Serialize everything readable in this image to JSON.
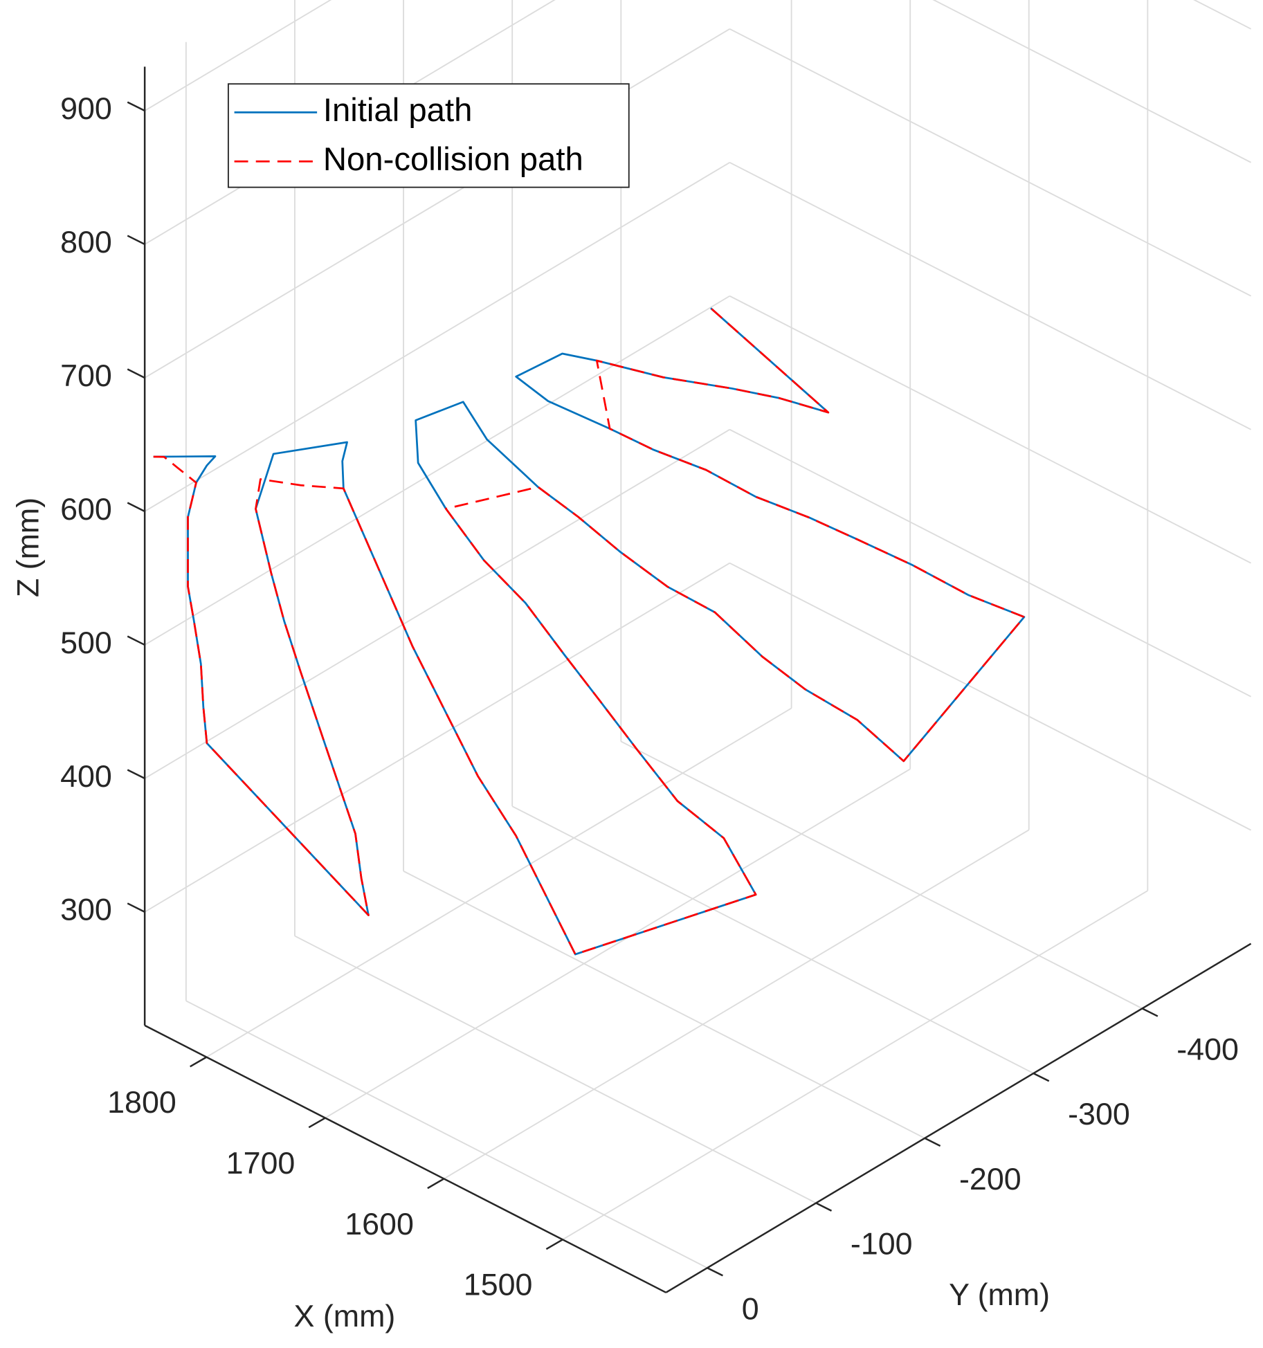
{
  "chart_data": {
    "type": "line3d",
    "xlabel": "X (mm)",
    "ylabel": "Y (mm)",
    "zlabel": "Z (mm)",
    "xlim": [
      1413,
      1852
    ],
    "ylim": [
      -500,
      38
    ],
    "zlim": [
      215,
      933
    ],
    "xticks": [
      1500,
      1600,
      1700,
      1800
    ],
    "yticks": [
      -400,
      -300,
      -200,
      -100,
      0
    ],
    "zticks": [
      300,
      400,
      500,
      600,
      700,
      800,
      900
    ],
    "grid": true,
    "legend": "upper left",
    "series": [
      {
        "name": "Initial path",
        "color": "#0072bd",
        "dash": false,
        "x": [
          1852,
          1800,
          1807,
          1816,
          1823,
          1823,
          1818,
          1812,
          1810,
          1807,
          1735,
          1741,
          1746,
          1770,
          1792,
          1806,
          1817,
          1830,
          1815,
          1753,
          1757,
          1756,
          1782,
          1727,
          1695,
          1645,
          1493,
          1520,
          1559,
          1593,
          1624,
          1654,
          1687,
          1722,
          1754,
          1837,
          1839,
          1799,
          1779,
          1736,
          1702,
          1667,
          1627,
          1587,
          1547,
          1511,
          1467,
          1428,
          1419,
          1466,
          1513,
          1560,
          1600,
          1645,
          1687,
          1731,
          1768,
          1820,
          1847,
          1808,
          1779,
          1723,
          1665,
          1625,
          1584,
          1683
        ],
        "y": [
          30,
          30,
          30,
          30,
          30,
          30,
          30,
          30,
          30,
          30,
          -40,
          -40,
          -40,
          -40,
          -40,
          -40,
          -40,
          -40,
          -40,
          -40,
          -40,
          -40,
          -132,
          -132,
          -132,
          -132,
          -132,
          -132,
          -132,
          -132,
          -132,
          -132,
          -132,
          -132,
          -132,
          -197,
          -197,
          -197,
          -197,
          -197,
          -197,
          -197,
          -197,
          -197,
          -197,
          -197,
          -197,
          -197,
          -298,
          -298,
          -298,
          -298,
          -298,
          -298,
          -298,
          -298,
          -298,
          -298,
          -298,
          -298,
          -298,
          -298,
          -298,
          -298,
          -298,
          -298
        ],
        "z": [
          637,
          661,
          651,
          634,
          605,
          553,
          530,
          500,
          469,
          443,
          313,
          338,
          369,
          421,
          469,
          501,
          532,
          574,
          622,
          659,
          643,
          623,
          448,
          376,
          346,
          280,
          394,
          424,
          434,
          457,
          479,
          500,
          524,
          540,
          564,
          529,
          560,
          592,
          573,
          557,
          550,
          540,
          532,
          531,
          516,
          508,
          505,
          492,
          555,
          550,
          551,
          549,
          547,
          542,
          543,
          538,
          537,
          534,
          540,
          575,
          583,
          596,
          614,
          625,
          633,
          666
        ]
      },
      {
        "name": "Non-collision path",
        "color": "#ff0000",
        "dash": true,
        "x": [
          1852,
          1843,
          1816,
          1823,
          1823,
          1818,
          1812,
          1810,
          1807,
          1735,
          1741,
          1746,
          1770,
          1792,
          1806,
          1817,
          1830,
          1826,
          1792,
          1756,
          1782,
          1727,
          1695,
          1645,
          1493,
          1520,
          1559,
          1593,
          1624,
          1654,
          1687,
          1722,
          1754,
          1769,
          1736,
          1702,
          1667,
          1627,
          1587,
          1547,
          1511,
          1467,
          1428,
          1419,
          1466,
          1513,
          1560,
          1600,
          1645,
          1687,
          1731,
          1768,
          1779,
          1723,
          1665,
          1625,
          1584,
          1683
        ],
        "y": [
          30,
          30,
          30,
          30,
          30,
          30,
          30,
          30,
          30,
          -40,
          -40,
          -40,
          -40,
          -40,
          -40,
          -40,
          -40,
          -40,
          -40,
          -40,
          -132,
          -132,
          -132,
          -132,
          -132,
          -132,
          -132,
          -132,
          -132,
          -132,
          -132,
          -132,
          -132,
          -197,
          -197,
          -197,
          -197,
          -197,
          -197,
          -197,
          -197,
          -197,
          -197,
          -298,
          -298,
          -298,
          -298,
          -298,
          -298,
          -298,
          -298,
          -298,
          -298,
          -298,
          -298,
          -298,
          -298,
          -298
        ],
        "z": [
          637,
          641,
          634,
          605,
          553,
          530,
          500,
          469,
          443,
          313,
          338,
          369,
          421,
          469,
          501,
          532,
          574,
          598,
          609,
          623,
          448,
          376,
          346,
          280,
          394,
          424,
          434,
          457,
          479,
          500,
          524,
          540,
          564,
          535,
          557,
          550,
          540,
          532,
          531,
          516,
          508,
          505,
          492,
          555,
          550,
          551,
          549,
          547,
          542,
          543,
          538,
          537,
          583,
          596,
          614,
          625,
          633,
          666
        ]
      }
    ]
  }
}
